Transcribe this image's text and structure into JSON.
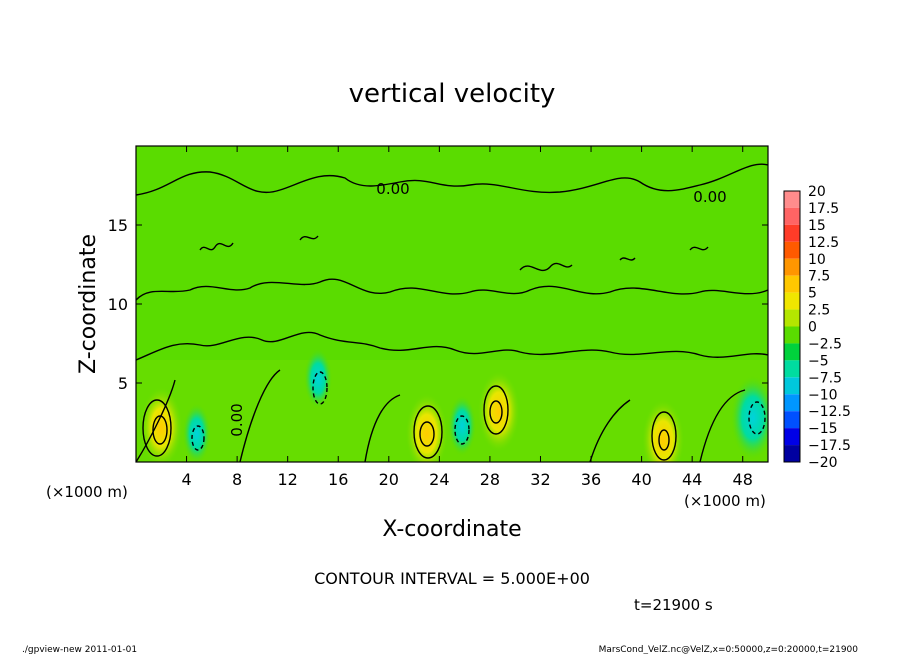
{
  "chart_data": {
    "type": "heatmap",
    "title": "vertical velocity",
    "xlabel": "X-coordinate",
    "ylabel": "Z-coordinate",
    "x_unit": "(×1000 m)",
    "y_unit": "(×1000 m)",
    "xlim": [
      0,
      50
    ],
    "ylim": [
      0,
      20
    ],
    "x_ticks": [
      4,
      8,
      12,
      16,
      20,
      24,
      28,
      32,
      36,
      40,
      44,
      48
    ],
    "y_ticks": [
      5,
      10,
      15
    ],
    "contour_interval": "CONTOUR INTERVAL = 5.000E+00",
    "contour_labels": [
      "0.00",
      "0.00",
      "0.00"
    ],
    "time_label": "t=21900 s",
    "colorbar": {
      "levels": [
        20,
        17.5,
        15,
        12.5,
        10,
        7.5,
        5,
        2.5,
        0,
        -2.5,
        -5,
        -7.5,
        -10,
        -12.5,
        -15,
        -17.5,
        -20
      ],
      "colors": [
        "#ff8c8c",
        "#ff6464",
        "#ff3c28",
        "#ff5a00",
        "#ff9600",
        "#ffc800",
        "#f0e600",
        "#b4e600",
        "#5adc00",
        "#00d23c",
        "#00dca0",
        "#00c8dc",
        "#0096ff",
        "#0050ff",
        "#0000e6",
        "#0000a0",
        "#6400c8"
      ]
    },
    "features": [
      {
        "x": 2,
        "z": 2.2,
        "value": 10
      },
      {
        "x": 4.8,
        "z": 1.8,
        "value": -5
      },
      {
        "x": 14.4,
        "z": 5.3,
        "value": -5
      },
      {
        "x": 23,
        "z": 1.8,
        "value": 7.5
      },
      {
        "x": 25.8,
        "z": 2.3,
        "value": -5
      },
      {
        "x": 28.7,
        "z": 3.2,
        "value": 7.5
      },
      {
        "x": 41.7,
        "z": 1.4,
        "value": 7.5
      },
      {
        "x": 48.8,
        "z": 2.8,
        "value": -7.5
      }
    ]
  },
  "footer": {
    "left": "./gpview-new   2011-01-01",
    "right": "MarsCond_VelZ.nc@VelZ,x=0:50000,z=0:20000,t=21900"
  }
}
